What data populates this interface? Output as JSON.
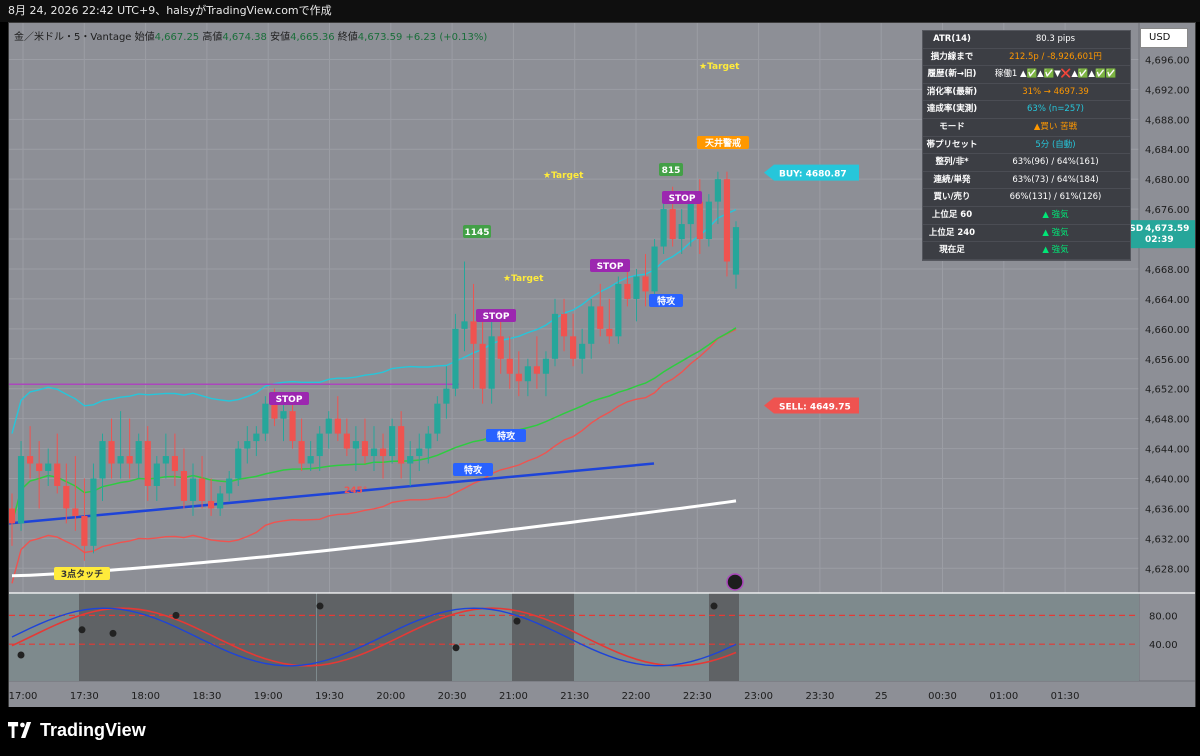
{
  "header": {
    "title": "8月 24, 2026 22:42 UTC+9、halsyがTradingView.comで作成"
  },
  "legend": {
    "symbol": "金／米ドル・5・Vantage",
    "open_label": "始値",
    "open": "4,667.25",
    "high_label": "高値",
    "high": "4,674.38",
    "low_label": "安値",
    "low": "4,665.36",
    "close_label": "終値",
    "close": "4,673.59",
    "change": "+6.23 (+0.13%)"
  },
  "currency_button": "USD",
  "stats_table": [
    {
      "key": "ATR(14)",
      "value": "80.3 pips",
      "color": "#ffffff"
    },
    {
      "key": "損力線まで",
      "value": "212.5p / -8,926,601円",
      "color": "#ff9800"
    },
    {
      "key": "履歴(新→旧)",
      "value": "稼働1 ▲✅▲✅▼❌▲✅▲✅✅",
      "color": "#ffffff"
    },
    {
      "key": "消化率(最新)",
      "value": "31% → 4697.39",
      "color": "#ff9800"
    },
    {
      "key": "達成率(実測)",
      "value": "63% (n=257)",
      "color": "#26c6da"
    },
    {
      "key": "モード",
      "value": "▲買い 苦戦",
      "color": "#ff9800"
    },
    {
      "key": "帯プリセット",
      "value": "5分 (自動)",
      "color": "#26c6da"
    },
    {
      "key": "整列/非*",
      "value": "63%(96) / 64%(161)",
      "color": "#ffffff"
    },
    {
      "key": "連続/単発",
      "value": "63%(73) / 64%(184)",
      "color": "#ffffff"
    },
    {
      "key": "買い/売り",
      "value": "66%(131) / 61%(126)",
      "color": "#ffffff"
    },
    {
      "key": "上位足 60",
      "value": "▲ 強気",
      "color": "#00e676"
    },
    {
      "key": "上位足 240",
      "value": "▲ 強気",
      "color": "#00e676"
    },
    {
      "key": "現在足",
      "value": "▲ 強気",
      "color": "#00e676"
    }
  ],
  "price_tag": {
    "symbol": "XAUUSD",
    "price": "4,673.59",
    "countdown": "02:39"
  },
  "buy_label": "BUY: 4680.87",
  "sell_label": "SELL: 4649.75",
  "signal_labels": {
    "stop": "STOP",
    "target": "★Target",
    "tokko": "特攻",
    "tenjo": "天井警戒",
    "touch3": "3点タッチ",
    "deg": "245°",
    "badge1": "1145",
    "badge2": "815"
  },
  "brand": "TradingView",
  "colors": {
    "up": "#26a69a",
    "down": "#ef5350",
    "bg": "#8d8f96"
  },
  "chart_data": {
    "type": "candlestick",
    "symbol": "XAUUSD",
    "timeframe": "5",
    "y_ticks": [
      4628,
      4632,
      4636,
      4640,
      4644,
      4648,
      4652,
      4656,
      4660,
      4664,
      4668,
      4672,
      4676,
      4680,
      4684,
      4688,
      4692,
      4696
    ],
    "y_tick_labels": [
      "4,628.00",
      "4,632.00",
      "4,636.00",
      "4,640.00",
      "4,644.00",
      "4,648.00",
      "4,652.00",
      "4,656.00",
      "4,660.00",
      "4,664.00",
      "4,668.00",
      "4,672.00",
      "4,676.00",
      "4,680.00",
      "4,684.00",
      "4,688.00",
      "4,692.00",
      "4,696.00"
    ],
    "ylim": [
      4625.5,
      4699
    ],
    "x_labels": [
      "17:00",
      "17:30",
      "18:00",
      "18:30",
      "19:00",
      "19:30",
      "20:00",
      "20:30",
      "21:00",
      "21:30",
      "22:00",
      "22:30",
      "23:00",
      "23:30",
      "25",
      "00:30",
      "01:00",
      "01:30"
    ],
    "candles": [
      [
        4636,
        4638,
        4631,
        4634
      ],
      [
        4634,
        4645,
        4633,
        4643
      ],
      [
        4643,
        4647,
        4640,
        4642
      ],
      [
        4642,
        4645,
        4636,
        4641
      ],
      [
        4641,
        4644,
        4639,
        4642
      ],
      [
        4642,
        4646,
        4638,
        4639
      ],
      [
        4639,
        4642,
        4634,
        4636
      ],
      [
        4636,
        4643,
        4633,
        4635
      ],
      [
        4635,
        4640,
        4629,
        4631
      ],
      [
        4631,
        4642,
        4630,
        4640
      ],
      [
        4640,
        4646,
        4637,
        4645
      ],
      [
        4645,
        4648,
        4640,
        4642
      ],
      [
        4642,
        4649,
        4640,
        4643
      ],
      [
        4643,
        4648,
        4640,
        4642
      ],
      [
        4642,
        4646,
        4640,
        4645
      ],
      [
        4645,
        4647,
        4637,
        4639
      ],
      [
        4639,
        4643,
        4637,
        4642
      ],
      [
        4642,
        4646,
        4640,
        4643
      ],
      [
        4643,
        4646,
        4639,
        4641
      ],
      [
        4641,
        4644,
        4636,
        4637
      ],
      [
        4637,
        4642,
        4635,
        4640
      ],
      [
        4640,
        4643,
        4636,
        4637
      ],
      [
        4637,
        4640,
        4635,
        4636
      ],
      [
        4636,
        4639,
        4635,
        4638
      ],
      [
        4638,
        4641,
        4637,
        4640
      ],
      [
        4640,
        4645,
        4639,
        4644
      ],
      [
        4644,
        4647,
        4642,
        4645
      ],
      [
        4645,
        4647,
        4643,
        4646
      ],
      [
        4646,
        4651,
        4645,
        4650
      ],
      [
        4650,
        4652,
        4647,
        4648
      ],
      [
        4648,
        4651,
        4645,
        4649
      ],
      [
        4649,
        4651,
        4644,
        4645
      ],
      [
        4645,
        4648,
        4641,
        4642
      ],
      [
        4642,
        4645,
        4641,
        4643
      ],
      [
        4643,
        4647,
        4641,
        4646
      ],
      [
        4646,
        4649,
        4644,
        4648
      ],
      [
        4648,
        4651,
        4645,
        4646
      ],
      [
        4646,
        4648,
        4643,
        4644
      ],
      [
        4644,
        4647,
        4641,
        4645
      ],
      [
        4645,
        4648,
        4642,
        4643
      ],
      [
        4643,
        4647,
        4641,
        4644
      ],
      [
        4644,
        4646,
        4640,
        4643
      ],
      [
        4643,
        4648,
        4642,
        4647
      ],
      [
        4647,
        4649,
        4640,
        4642
      ],
      [
        4642,
        4645,
        4639,
        4643
      ],
      [
        4643,
        4646,
        4641,
        4644
      ],
      [
        4644,
        4647,
        4642,
        4646
      ],
      [
        4646,
        4651,
        4645,
        4650
      ],
      [
        4650,
        4655,
        4648,
        4652
      ],
      [
        4652,
        4662,
        4651,
        4660
      ],
      [
        4660,
        4669,
        4657,
        4661
      ],
      [
        4661,
        4666,
        4652,
        4658
      ],
      [
        4658,
        4662,
        4650,
        4652
      ],
      [
        4652,
        4661,
        4650,
        4659
      ],
      [
        4659,
        4662,
        4654,
        4656
      ],
      [
        4656,
        4659,
        4652,
        4654
      ],
      [
        4654,
        4657,
        4651,
        4653
      ],
      [
        4653,
        4656,
        4651,
        4655
      ],
      [
        4655,
        4659,
        4652,
        4654
      ],
      [
        4654,
        4657,
        4651,
        4656
      ],
      [
        4656,
        4664,
        4655,
        4662
      ],
      [
        4662,
        4664,
        4657,
        4659
      ],
      [
        4659,
        4662,
        4655,
        4656
      ],
      [
        4656,
        4660,
        4654,
        4658
      ],
      [
        4658,
        4664,
        4656,
        4663
      ],
      [
        4663,
        4666,
        4659,
        4660
      ],
      [
        4660,
        4664,
        4658,
        4659
      ],
      [
        4659,
        4667,
        4658,
        4666
      ],
      [
        4666,
        4669,
        4663,
        4664
      ],
      [
        4664,
        4668,
        4661,
        4667
      ],
      [
        4667,
        4670,
        4663,
        4665
      ],
      [
        4665,
        4672,
        4664,
        4671
      ],
      [
        4671,
        4678,
        4670,
        4676
      ],
      [
        4676,
        4679,
        4671,
        4672
      ],
      [
        4672,
        4676,
        4670,
        4674
      ],
      [
        4674,
        4678,
        4671,
        4677
      ],
      [
        4677,
        4680,
        4670,
        4672
      ],
      [
        4672,
        4678,
        4671,
        4677
      ],
      [
        4677,
        4681,
        4674,
        4680
      ],
      [
        4680,
        4681,
        4667,
        4669
      ],
      [
        4667.25,
        4674.38,
        4665.36,
        4673.59
      ]
    ],
    "overlays": [
      "upper band (cyan)",
      "lower band (red)",
      "moving average (green)",
      "moving average (white)",
      "trend line (blue)"
    ],
    "buy_level": 4680.87,
    "sell_level": 4649.75,
    "oscillator": {
      "levels": [
        80.0,
        40.0
      ],
      "tick_labels": [
        "80.00",
        "40.00"
      ]
    }
  }
}
